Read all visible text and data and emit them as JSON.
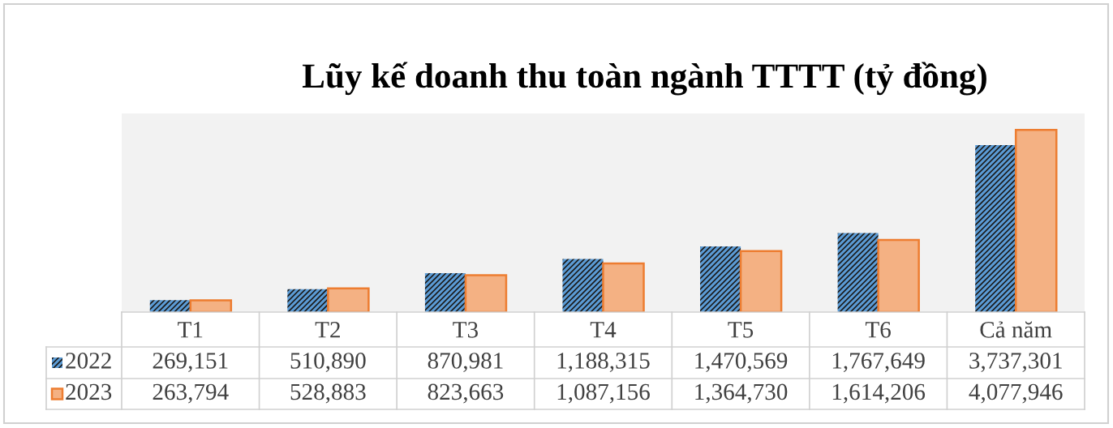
{
  "chart_data": {
    "type": "bar",
    "title": "Lũy kế doanh thu toàn ngành TTTT (tỷ đồng)",
    "categories": [
      "T1",
      "T2",
      "T3",
      "T4",
      "T5",
      "T6",
      "Cả năm"
    ],
    "series": [
      {
        "name": "2022",
        "color": "#5b9bd5",
        "values": [
          269151,
          510890,
          870981,
          1188315,
          1470569,
          1767649,
          3737301
        ],
        "value_labels": [
          "269,151",
          "510,890",
          "870,981",
          "1,188,315",
          "1,470,569",
          "1,767,649",
          "3,737,301"
        ]
      },
      {
        "name": "2023",
        "color": "#f4b183",
        "values": [
          263794,
          528883,
          823663,
          1087156,
          1364730,
          1614206,
          4077946
        ],
        "value_labels": [
          "263,794",
          "528,883",
          "823,663",
          "1,087,156",
          "1,364,730",
          "1,614,206",
          "4,077,946"
        ]
      }
    ],
    "legend": "bottom left"
  }
}
